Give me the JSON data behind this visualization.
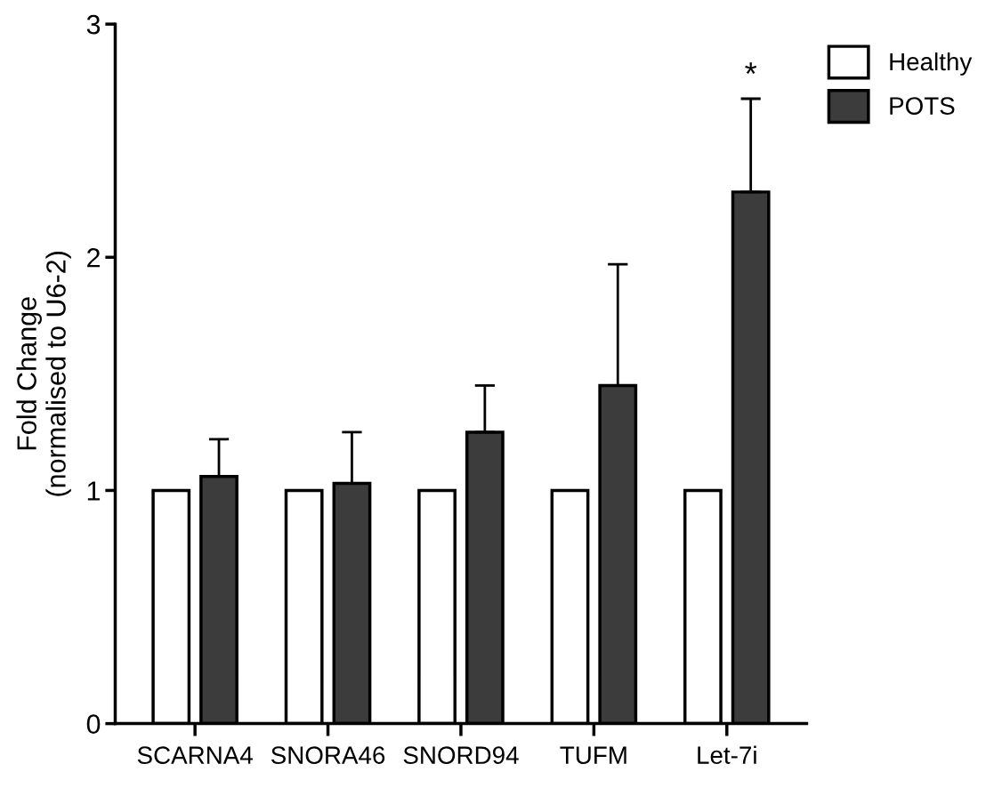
{
  "chart_data": {
    "type": "bar",
    "ylabel": "Fold Change\n(normalised to U6-2)",
    "categories": [
      "SCARNA4",
      "SNORA46",
      "SNORD94",
      "TUFM",
      "Let-7i"
    ],
    "series": [
      {
        "name": "Healthy",
        "color": "#ffffff",
        "values": [
          1.0,
          1.0,
          1.0,
          1.0,
          1.0
        ]
      },
      {
        "name": "POTS",
        "color": "#3c3c3c",
        "values": [
          1.06,
          1.03,
          1.25,
          1.45,
          2.28
        ],
        "errors": [
          0.16,
          0.22,
          0.2,
          0.52,
          0.4
        ]
      }
    ],
    "annotations": [
      "*"
    ],
    "ylim": [
      0,
      3
    ],
    "yticks": [
      0,
      1,
      2,
      3
    ],
    "grid": false,
    "legend": "top right"
  }
}
